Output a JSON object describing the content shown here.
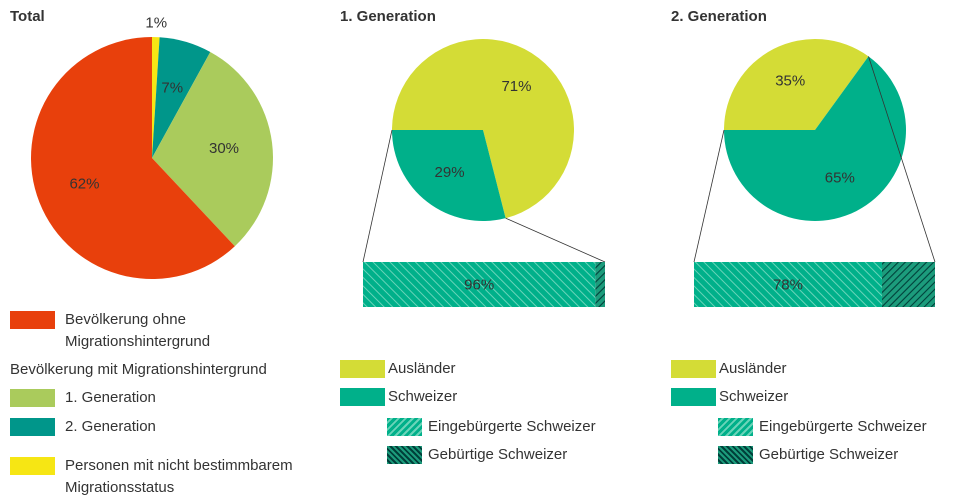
{
  "chart_data": [
    {
      "type": "pie",
      "title": "Total",
      "categories": [
        "Bevölkerung ohne Migrationshintergrund",
        "1. Generation",
        "2. Generation",
        "Personen mit nicht bestimmbarem Migrationsstatus"
      ],
      "values": [
        62,
        30,
        7,
        1
      ],
      "value_labels": [
        "62%",
        "30%",
        "7%",
        "1%"
      ],
      "colors": [
        "#e8400c",
        "#aacb5c",
        "#00968a",
        "#f6e614"
      ],
      "legend_heading": "Bevölkerung mit Migrationshintergrund"
    },
    {
      "type": "pie",
      "title": "1. Generation",
      "categories": [
        "Ausländer",
        "Schweizer"
      ],
      "values": [
        71,
        29
      ],
      "value_labels": [
        "71%",
        "29%"
      ],
      "colors": [
        "#d4dc36",
        "#00b08a"
      ],
      "breakdown": {
        "type": "stacked-bar",
        "categories": [
          "Eingebürgerte Schweizer",
          "Gebürtige Schweizer"
        ],
        "values": [
          96,
          4
        ],
        "value_labels": [
          "96%",
          null
        ],
        "colors": [
          "#00b08a",
          "#00604f"
        ]
      }
    },
    {
      "type": "pie",
      "title": "2. Generation",
      "categories": [
        "Ausländer",
        "Schweizer"
      ],
      "values": [
        35,
        65
      ],
      "value_labels": [
        "35%",
        "65%"
      ],
      "colors": [
        "#d4dc36",
        "#00b08a"
      ],
      "breakdown": {
        "type": "stacked-bar",
        "categories": [
          "Eingebürgerte Schweizer",
          "Gebürtige Schweizer"
        ],
        "values": [
          78,
          22
        ],
        "value_labels": [
          "78%",
          null
        ],
        "colors": [
          "#00b08a",
          "#00604f"
        ]
      }
    }
  ]
}
